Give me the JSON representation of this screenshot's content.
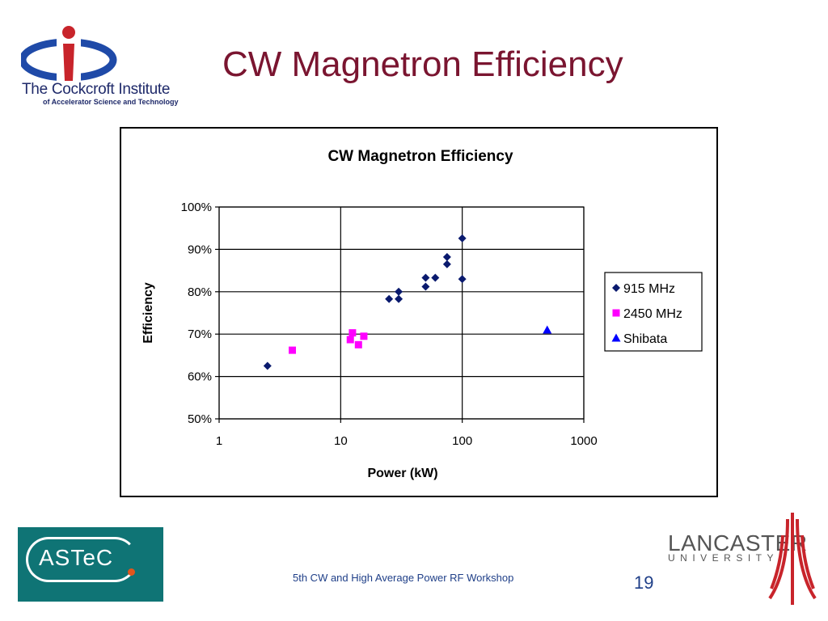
{
  "slide": {
    "title": "CW Magnetron Efficiency",
    "footer": "5th CW and High Average Power RF Workshop",
    "page_number": "19"
  },
  "logos": {
    "cockcroft_name": "The Cockcroft Institute",
    "cockcroft_sub": "of Accelerator Science and Technology",
    "astec": "ASTeC",
    "lancaster_name": "LANCASTER",
    "lancaster_sub": "UNIVERSITY"
  },
  "colors": {
    "title": "#7a1530",
    "footer": "#1f3f88",
    "series_915": "#0a1a6e",
    "series_2450": "#ff00ff",
    "series_shibata": "#0000ff"
  },
  "chart_data": {
    "type": "scatter",
    "title": "CW Magnetron Efficiency",
    "xlabel": "Power (kW)",
    "ylabel": "Efficiency",
    "x_scale": "log",
    "xlim": [
      1,
      1000
    ],
    "ylim": [
      0.5,
      1.0
    ],
    "x_ticks": [
      "1",
      "10",
      "100",
      "1000"
    ],
    "y_ticks": [
      "50%",
      "60%",
      "70%",
      "80%",
      "90%",
      "100%"
    ],
    "grid": "on",
    "legend_position": "right",
    "series": [
      {
        "name": "915 MHz",
        "marker": "diamond",
        "points": [
          [
            2.5,
            0.625
          ],
          [
            25,
            0.783
          ],
          [
            30,
            0.783
          ],
          [
            30,
            0.8
          ],
          [
            50,
            0.812
          ],
          [
            50,
            0.833
          ],
          [
            60,
            0.833
          ],
          [
            75,
            0.865
          ],
          [
            75,
            0.882
          ],
          [
            100,
            0.83
          ],
          [
            100,
            0.926
          ]
        ]
      },
      {
        "name": "2450 MHz",
        "marker": "square",
        "points": [
          [
            4,
            0.662
          ],
          [
            12,
            0.687
          ],
          [
            12.5,
            0.703
          ],
          [
            14,
            0.675
          ],
          [
            15.5,
            0.695
          ]
        ]
      },
      {
        "name": "Shibata",
        "marker": "triangle",
        "points": [
          [
            500,
            0.71
          ]
        ]
      }
    ]
  }
}
